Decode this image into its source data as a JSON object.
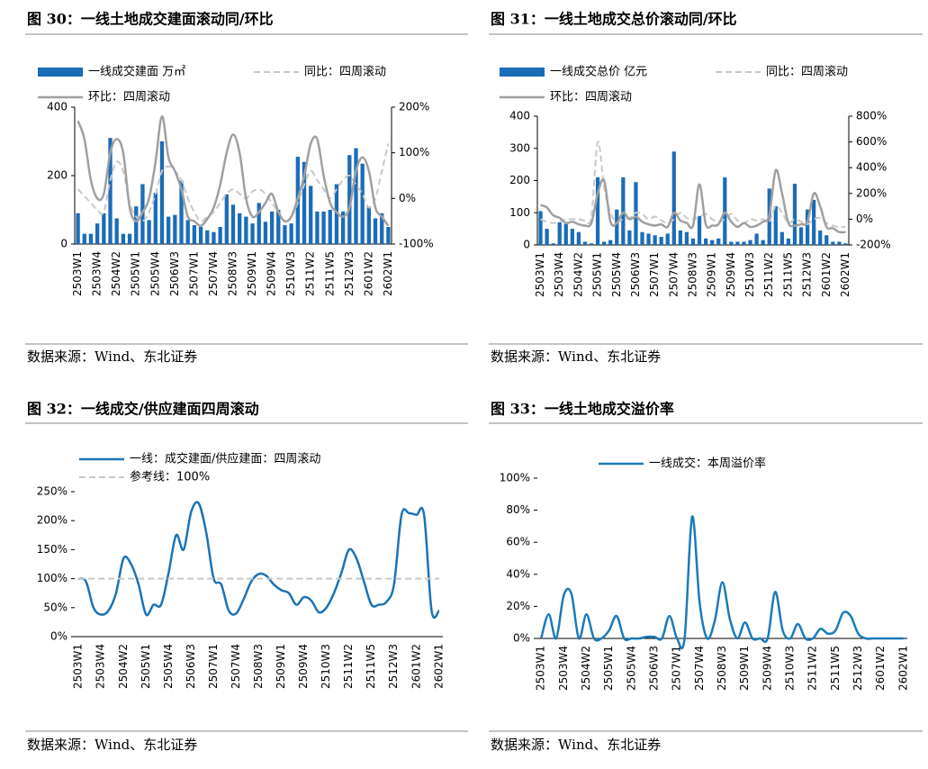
{
  "chart_data": [
    {
      "type": "bar",
      "title": "图 30：一线土地成交建面滚动同/环比",
      "source": "数据来源：Wind、东北证券",
      "categories": [
        "2503W1",
        null,
        null,
        "2503W4",
        null,
        null,
        "2504W2",
        null,
        null,
        "2505W1",
        null,
        null,
        "2505W4",
        null,
        null,
        "2506W3",
        null,
        null,
        "2507W1",
        null,
        null,
        "2507W4",
        null,
        null,
        "2508W3",
        null,
        null,
        "2509W1",
        null,
        null,
        "2509W4",
        null,
        null,
        "2510W3",
        null,
        null,
        "2511W2",
        null,
        null,
        "2511W5",
        null,
        null,
        "2512W3",
        null,
        null,
        "2601W2",
        null,
        null,
        "2602W1"
      ],
      "ylim": [
        0,
        400
      ],
      "yticks": [
        0,
        200,
        400
      ],
      "y2lim": [
        -100,
        200
      ],
      "y2ticks": [
        {
          "value": -100,
          "label": "-100%"
        },
        {
          "value": 0,
          "label": "0%"
        },
        {
          "value": 100,
          "label": "100%"
        },
        {
          "value": 200,
          "label": "200%"
        }
      ],
      "series": [
        {
          "name": "一线成交建面 万㎡",
          "type": "bar",
          "color": "#1b6cb8",
          "values": [
            90,
            30,
            30,
            60,
            90,
            310,
            75,
            30,
            30,
            110,
            175,
            70,
            150,
            300,
            80,
            85,
            185,
            70,
            55,
            50,
            40,
            35,
            50,
            145,
            115,
            90,
            80,
            60,
            120,
            65,
            95,
            100,
            55,
            60,
            255,
            240,
            170,
            95,
            95,
            100,
            175,
            95,
            260,
            280,
            235,
            110,
            75,
            90,
            50
          ]
        },
        {
          "name": "同比：四周滚动",
          "type": "line",
          "axis": "y2",
          "style": "dashed",
          "color": "#c8c8c8",
          "values": [
            20,
            5,
            -10,
            -25,
            -30,
            40,
            80,
            60,
            -10,
            -40,
            -50,
            -30,
            10,
            60,
            70,
            60,
            40,
            0,
            -30,
            -50,
            -40,
            -30,
            -10,
            10,
            20,
            10,
            0,
            15,
            20,
            10,
            -10,
            -30,
            -50,
            -40,
            -10,
            30,
            60,
            40,
            20,
            0,
            20,
            40,
            50,
            30,
            10,
            -20,
            0,
            60,
            120
          ]
        },
        {
          "name": "环比：四周滚动",
          "type": "line",
          "axis": "y2",
          "style": "solid",
          "color": "#a0a0a0",
          "values": [
            170,
            130,
            40,
            0,
            10,
            100,
            130,
            100,
            -20,
            -50,
            -30,
            0,
            80,
            180,
            90,
            60,
            20,
            -40,
            -50,
            -60,
            -45,
            -20,
            30,
            100,
            140,
            100,
            0,
            -40,
            -30,
            -10,
            10,
            -30,
            -50,
            -40,
            0,
            50,
            120,
            130,
            50,
            -10,
            -30,
            -40,
            -20,
            60,
            90,
            60,
            -20,
            -40,
            -60
          ]
        }
      ]
    },
    {
      "type": "bar",
      "title": "图 31：一线土地成交总价滚动同/环比",
      "source": "数据来源：Wind、东北证券",
      "categories": [
        "2503W1",
        null,
        null,
        "2503W4",
        null,
        null,
        "2504W2",
        null,
        null,
        "2505W1",
        null,
        null,
        "2505W4",
        null,
        null,
        "2506W3",
        null,
        null,
        "2507W1",
        null,
        null,
        "2507W4",
        null,
        null,
        "2508W3",
        null,
        null,
        "2509W1",
        null,
        null,
        "2509W4",
        null,
        null,
        "2510W3",
        null,
        null,
        "2511W2",
        null,
        null,
        "2511W5",
        null,
        null,
        "2512W3",
        null,
        null,
        "2601W2",
        null,
        null,
        "2602W1"
      ],
      "ylim": [
        0,
        400
      ],
      "yticks": [
        0,
        100,
        200,
        300,
        400
      ],
      "y2lim": [
        -200,
        800
      ],
      "y2ticks": [
        {
          "value": -200,
          "label": "-200%"
        },
        {
          "value": 0,
          "label": "0%"
        },
        {
          "value": 200,
          "label": "200%"
        },
        {
          "value": 400,
          "label": "400%"
        },
        {
          "value": 600,
          "label": "600%"
        },
        {
          "value": 800,
          "label": "800%"
        }
      ],
      "series": [
        {
          "name": "一线成交总价 亿元",
          "type": "bar",
          "color": "#1b6cb8",
          "values": [
            105,
            50,
            5,
            70,
            65,
            50,
            40,
            10,
            5,
            210,
            10,
            15,
            110,
            210,
            45,
            195,
            40,
            35,
            30,
            25,
            35,
            290,
            45,
            40,
            20,
            90,
            20,
            15,
            20,
            210,
            10,
            10,
            10,
            15,
            35,
            15,
            175,
            120,
            40,
            20,
            190,
            55,
            110,
            140,
            45,
            30,
            10,
            10,
            5
          ]
        },
        {
          "name": "同比：四周滚动",
          "type": "line",
          "axis": "y2",
          "style": "dashed",
          "color": "#c8c8c8",
          "values": [
            0,
            -20,
            -30,
            -20,
            0,
            0,
            0,
            -10,
            20,
            600,
            250,
            50,
            -20,
            0,
            10,
            50,
            40,
            0,
            20,
            -10,
            -30,
            0,
            50,
            10,
            0,
            20,
            40,
            0,
            -20,
            0,
            40,
            -10,
            -30,
            0,
            -10,
            0,
            -20,
            100,
            50,
            -30,
            0,
            -20,
            -40,
            0,
            10,
            -30,
            -50,
            -60,
            -60
          ]
        },
        {
          "name": "环比：四周滚动",
          "type": "line",
          "axis": "y2",
          "style": "solid",
          "color": "#a0a0a0",
          "values": [
            110,
            90,
            30,
            10,
            -30,
            -20,
            -40,
            -50,
            -30,
            200,
            300,
            -20,
            -30,
            50,
            0,
            20,
            -20,
            -40,
            -50,
            -40,
            -60,
            50,
            -10,
            -30,
            -50,
            270,
            -40,
            -50,
            -40,
            50,
            -20,
            -60,
            -30,
            -60,
            -50,
            -20,
            30,
            380,
            200,
            -30,
            -50,
            -40,
            -20,
            200,
            100,
            -60,
            -70,
            -100,
            -100
          ]
        }
      ]
    },
    {
      "type": "line",
      "title": "图 32：一线成交/供应建面四周滚动",
      "source": "数据来源：Wind、东北证券",
      "categories": [
        "2503W1",
        null,
        null,
        "2503W4",
        null,
        null,
        "2504W2",
        null,
        null,
        "2505W1",
        null,
        null,
        "2505W4",
        null,
        null,
        "2506W3",
        null,
        null,
        "2507W1",
        null,
        null,
        "2507W4",
        null,
        null,
        "2508W3",
        null,
        null,
        "2509W1",
        null,
        null,
        "2509W4",
        null,
        null,
        "2510W3",
        null,
        null,
        "2511W2",
        null,
        null,
        "2511W5",
        null,
        null,
        "2512W3",
        null,
        null,
        "2601W2",
        null,
        null,
        "2602W1"
      ],
      "ylim": [
        0,
        250
      ],
      "yticks": [
        {
          "value": 0,
          "label": "0%"
        },
        {
          "value": 50,
          "label": "50%"
        },
        {
          "value": 100,
          "label": "100%"
        },
        {
          "value": 150,
          "label": "150%"
        },
        {
          "value": 200,
          "label": "200%"
        },
        {
          "value": 250,
          "label": "250%"
        }
      ],
      "series": [
        {
          "name": "一线：成交建面/供应建面：四周滚动",
          "type": "line",
          "style": "solid",
          "color": "#1a73b7",
          "values": [
            100,
            95,
            50,
            38,
            45,
            75,
            135,
            125,
            90,
            38,
            55,
            55,
            110,
            175,
            150,
            215,
            230,
            180,
            100,
            90,
            45,
            40,
            65,
            95,
            108,
            105,
            90,
            80,
            75,
            55,
            68,
            62,
            42,
            50,
            75,
            110,
            150,
            135,
            95,
            55,
            55,
            60,
            90,
            210,
            213,
            210,
            210,
            45,
            45
          ]
        },
        {
          "name": "参考线：100%",
          "type": "line",
          "style": "dashed",
          "color": "#c8c8c8",
          "values": [
            100,
            100,
            100,
            100,
            100,
            100,
            100,
            100,
            100,
            100,
            100,
            100,
            100,
            100,
            100,
            100,
            100,
            100,
            100,
            100,
            100,
            100,
            100,
            100,
            100,
            100,
            100,
            100,
            100,
            100,
            100,
            100,
            100,
            100,
            100,
            100,
            100,
            100,
            100,
            100,
            100,
            100,
            100,
            100,
            100,
            100,
            100,
            100,
            100
          ]
        }
      ]
    },
    {
      "type": "line",
      "title": "图 33：一线土地成交溢价率",
      "source": "数据来源：Wind、东北证券",
      "categories": [
        "2503W1",
        null,
        null,
        "2503W4",
        null,
        null,
        "2504W2",
        null,
        null,
        "2505W1",
        null,
        null,
        "2505W4",
        null,
        null,
        "2506W3",
        null,
        null,
        "2507W1",
        null,
        null,
        "2507W4",
        null,
        null,
        "2508W3",
        null,
        null,
        "2509W1",
        null,
        null,
        "2509W4",
        null,
        null,
        "2510W3",
        null,
        null,
        "2511W2",
        null,
        null,
        "2511W5",
        null,
        null,
        "2512W3",
        null,
        null,
        "2601W2",
        null,
        null,
        "2602W1"
      ],
      "ylim": [
        0,
        100
      ],
      "yticks": [
        {
          "value": 0,
          "label": "0%"
        },
        {
          "value": 20,
          "label": "20%"
        },
        {
          "value": 40,
          "label": "40%"
        },
        {
          "value": 60,
          "label": "60%"
        },
        {
          "value": 80,
          "label": "80%"
        },
        {
          "value": 100,
          "label": "100%"
        }
      ],
      "series": [
        {
          "name": "一线成交：本周溢价率",
          "type": "line",
          "style": "solid",
          "color": "#1a7ab8",
          "values": [
            0,
            15,
            0,
            27,
            28,
            0,
            15,
            0,
            0,
            5,
            14,
            0,
            0,
            0,
            1,
            1,
            0,
            14,
            0,
            0,
            76,
            22,
            0,
            11,
            35,
            12,
            0,
            10,
            0,
            0,
            0,
            29,
            5,
            0,
            9,
            0,
            0,
            6,
            3,
            5,
            16,
            14,
            3,
            0,
            0,
            0,
            0,
            0,
            0
          ]
        }
      ]
    }
  ]
}
